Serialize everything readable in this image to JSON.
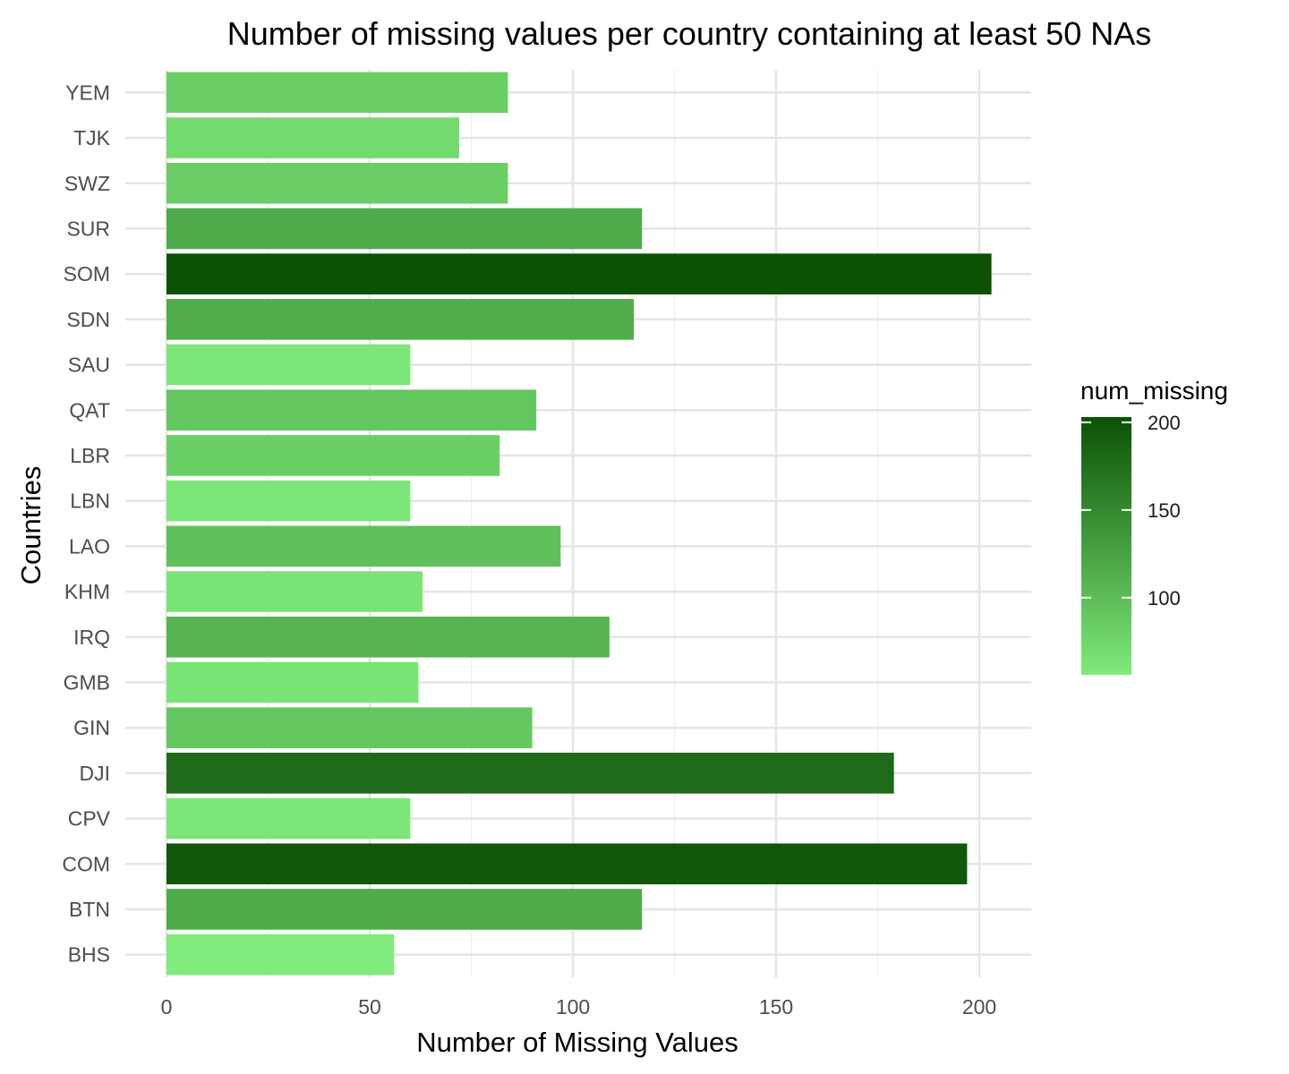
{
  "chart_data": {
    "type": "bar",
    "orientation": "horizontal",
    "title": "Number of missing values per country containing at least 50 NAs",
    "xlabel": "Number of Missing Values",
    "ylabel": "Countries",
    "categories": [
      "BHS",
      "BTN",
      "COM",
      "CPV",
      "DJI",
      "GIN",
      "GMB",
      "IRQ",
      "KHM",
      "LAO",
      "LBN",
      "LBR",
      "QAT",
      "SAU",
      "SDN",
      "SOM",
      "SUR",
      "SWZ",
      "TJK",
      "YEM"
    ],
    "values": [
      56,
      117,
      197,
      60,
      179,
      90,
      62,
      109,
      63,
      97,
      60,
      82,
      91,
      60,
      115,
      203,
      117,
      84,
      72,
      84
    ],
    "xlim": [
      0,
      213
    ],
    "xticks": [
      "0",
      "50",
      "100",
      "150",
      "200"
    ],
    "grid": true,
    "legend": {
      "title": "num_missing",
      "placement": "right",
      "type": "colorbar",
      "range": [
        56,
        203
      ],
      "ticks": [
        "100",
        "150",
        "200"
      ],
      "color_low": "#80ea7c",
      "color_high": "#0b5104"
    }
  }
}
